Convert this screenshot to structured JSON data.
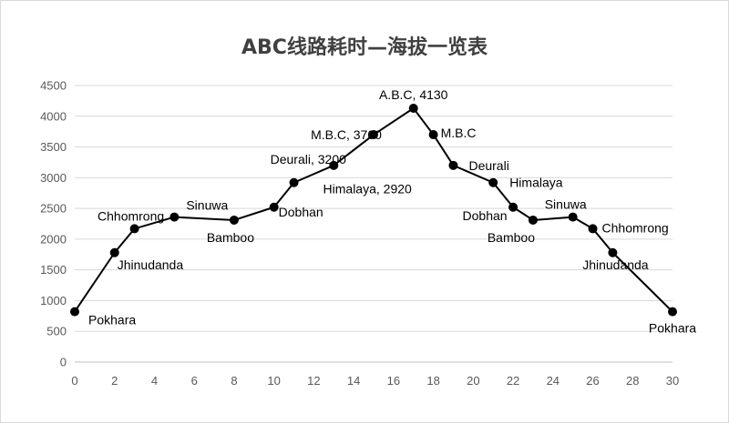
{
  "chart_data": {
    "type": "line",
    "title": "ABC线路耗时—海拔一览表",
    "xlim": [
      0,
      30
    ],
    "ylim": [
      0,
      4500
    ],
    "x_ticks": [
      0,
      2,
      4,
      6,
      8,
      10,
      12,
      14,
      16,
      18,
      20,
      22,
      24,
      26,
      28,
      30
    ],
    "y_ticks": [
      0,
      500,
      1000,
      1500,
      2000,
      2500,
      3000,
      3500,
      4000,
      4500
    ],
    "grid": "horizontal",
    "legend": "none",
    "line_color": "#000000",
    "series": [
      {
        "points": [
          {
            "x": 0,
            "y": 820,
            "label": "Pokhara"
          },
          {
            "x": 2,
            "y": 1780,
            "label": "Jhinudanda"
          },
          {
            "x": 3,
            "y": 2170,
            "label": "Chhomrong"
          },
          {
            "x": 5,
            "y": 2360,
            "label": "Sinuwa"
          },
          {
            "x": 8,
            "y": 2310,
            "label": "Bamboo"
          },
          {
            "x": 10,
            "y": 2520,
            "label": "Dobhan"
          },
          {
            "x": 11,
            "y": 2920,
            "label": "Himalaya, 2920"
          },
          {
            "x": 13,
            "y": 3200,
            "label": "Deurali, 3200"
          },
          {
            "x": 15,
            "y": 3700,
            "label": "M.B.C, 3700"
          },
          {
            "x": 17,
            "y": 4130,
            "label": "A.B.C, 4130"
          },
          {
            "x": 18,
            "y": 3700,
            "label": "M.B.C"
          },
          {
            "x": 19,
            "y": 3200,
            "label": "Deurali"
          },
          {
            "x": 21,
            "y": 2920,
            "label": "Himalaya"
          },
          {
            "x": 22,
            "y": 2520,
            "label": "Dobhan"
          },
          {
            "x": 23,
            "y": 2310,
            "label": "Bamboo"
          },
          {
            "x": 25,
            "y": 2360,
            "label": "Sinuwa"
          },
          {
            "x": 26,
            "y": 2170,
            "label": "Chhomrong"
          },
          {
            "x": 27,
            "y": 1780,
            "label": "Jhinudanda"
          },
          {
            "x": 30,
            "y": 820,
            "label": "Pokhara"
          }
        ]
      }
    ]
  }
}
